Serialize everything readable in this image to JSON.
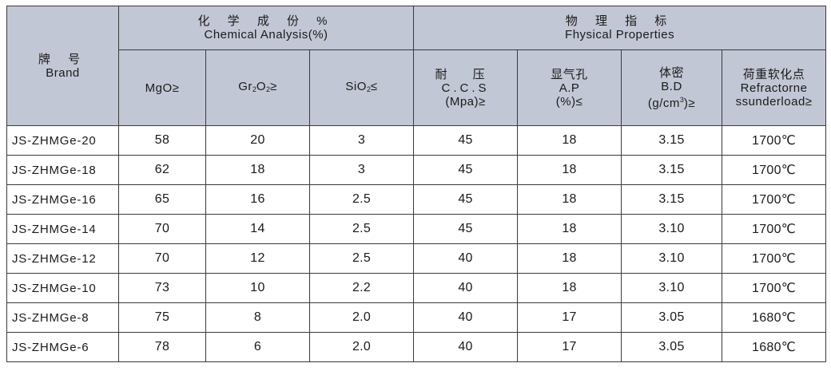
{
  "header": {
    "brand_cn": "牌 号",
    "brand_en": "Brand",
    "chem_cn": "化 学 成 份 %",
    "chem_en": "Chemical Analysis(%)",
    "phys_cn": "物 理 指 标",
    "phys_en": "Fhysical Properties",
    "columns": {
      "mgo": {
        "main": "MgO≥"
      },
      "gr": {
        "a": "Gr",
        "sub1": "2",
        "b": "O",
        "sub2": "2",
        "c": "≥"
      },
      "sio": {
        "a": "SiO",
        "sub": "2",
        "c": "≤"
      },
      "ccs": {
        "cn": "耐  压",
        "l2": "C.C.S",
        "l3": "(Mpa)≥"
      },
      "ap": {
        "cn": "显气孔",
        "l2": "A.P",
        "l3": "(%)≤"
      },
      "bd": {
        "cn": "体密",
        "l2": "B.D",
        "l3a": "(g/cm",
        "sup": "3",
        "l3b": ")≥"
      },
      "ref": {
        "cn": "荷重软化点",
        "l2": "Refractorne",
        "l3": "ssunderload≥"
      }
    }
  },
  "rows": [
    {
      "brand": "JS-ZHMGe-20",
      "mgo": "58",
      "gr": "20",
      "sio": "3",
      "ccs": "45",
      "ap": "18",
      "bd": "3.15",
      "ref": "1700℃"
    },
    {
      "brand": "JS-ZHMGe-18",
      "mgo": "62",
      "gr": "18",
      "sio": "3",
      "ccs": "45",
      "ap": "18",
      "bd": "3.15",
      "ref": "1700℃"
    },
    {
      "brand": "JS-ZHMGe-16",
      "mgo": "65",
      "gr": "16",
      "sio": "2.5",
      "ccs": "45",
      "ap": "18",
      "bd": "3.15",
      "ref": "1700℃"
    },
    {
      "brand": "JS-ZHMGe-14",
      "mgo": "70",
      "gr": "14",
      "sio": "2.5",
      "ccs": "45",
      "ap": "18",
      "bd": "3.10",
      "ref": "1700℃"
    },
    {
      "brand": "JS-ZHMGe-12",
      "mgo": "70",
      "gr": "12",
      "sio": "2.5",
      "ccs": "40",
      "ap": "18",
      "bd": "3.10",
      "ref": "1700℃"
    },
    {
      "brand": "JS-ZHMGe-10",
      "mgo": "73",
      "gr": "10",
      "sio": "2.2",
      "ccs": "40",
      "ap": "18",
      "bd": "3.10",
      "ref": "1700℃"
    },
    {
      "brand": "JS-ZHMGe-8",
      "mgo": "75",
      "gr": "8",
      "sio": "2.0",
      "ccs": "40",
      "ap": "17",
      "bd": "3.05",
      "ref": "1680℃"
    },
    {
      "brand": "JS-ZHMGe-6",
      "mgo": "78",
      "gr": "6",
      "sio": "2.0",
      "ccs": "40",
      "ap": "17",
      "bd": "3.05",
      "ref": "1680℃"
    }
  ],
  "colors": {
    "header_bg": "#c2c7d5",
    "border": "#3a3a3a",
    "text": "#1a1a1a"
  }
}
